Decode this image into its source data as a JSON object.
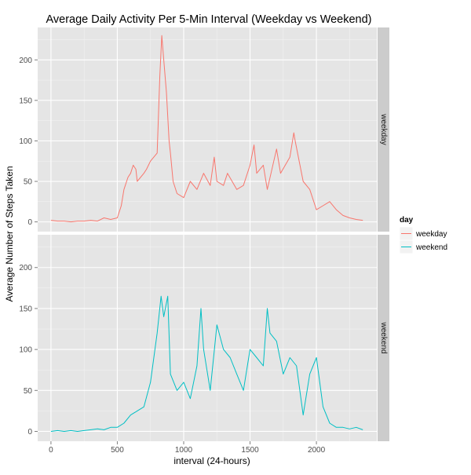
{
  "chart_data": {
    "type": "line",
    "title": "Average Daily Activity Per 5-Min Interval (Weekday vs Weekend)",
    "xlabel": "interval (24-hours)",
    "ylabel": "Average Number of Steps Taken",
    "x_ticks": [
      0,
      500,
      1000,
      1500,
      2000
    ],
    "y_ticks": [
      0,
      50,
      100,
      150,
      200
    ],
    "xlim": [
      -100,
      2455
    ],
    "ylim": [
      -12,
      240
    ],
    "grid": true,
    "legend_position": "right",
    "legend_title": "day",
    "colors": {
      "weekday": "#F8766D",
      "weekend": "#00BFC4",
      "panel_background": "#E5E5E5",
      "grid_line": "#FFFFFF",
      "strip_background": "#CCCCCC"
    },
    "panels": [
      {
        "strip_label": "weekday",
        "series": "weekday"
      },
      {
        "strip_label": "weekend",
        "series": "weekend"
      }
    ],
    "series": [
      {
        "name": "weekday",
        "x": [
          0,
          50,
          100,
          150,
          200,
          250,
          300,
          350,
          400,
          450,
          500,
          530,
          550,
          580,
          600,
          620,
          640,
          650,
          700,
          720,
          750,
          800,
          820,
          835,
          850,
          870,
          890,
          900,
          920,
          950,
          1000,
          1050,
          1100,
          1150,
          1200,
          1230,
          1250,
          1300,
          1330,
          1400,
          1450,
          1500,
          1530,
          1550,
          1600,
          1630,
          1700,
          1730,
          1800,
          1830,
          1840,
          1900,
          1950,
          2000,
          2050,
          2100,
          2150,
          2200,
          2250,
          2300,
          2350
        ],
        "y": [
          2,
          1,
          1,
          0,
          1,
          1,
          2,
          1,
          5,
          3,
          5,
          20,
          40,
          55,
          60,
          70,
          65,
          50,
          60,
          65,
          75,
          85,
          180,
          230,
          200,
          160,
          100,
          85,
          50,
          35,
          30,
          50,
          40,
          60,
          45,
          80,
          50,
          45,
          60,
          40,
          45,
          70,
          95,
          60,
          70,
          40,
          90,
          60,
          80,
          110,
          100,
          50,
          40,
          15,
          20,
          25,
          15,
          8,
          5,
          3,
          2
        ]
      },
      {
        "name": "weekend",
        "x": [
          0,
          50,
          100,
          150,
          200,
          250,
          300,
          350,
          400,
          450,
          500,
          550,
          600,
          650,
          700,
          750,
          800,
          830,
          850,
          880,
          900,
          950,
          1000,
          1050,
          1100,
          1130,
          1150,
          1200,
          1250,
          1300,
          1350,
          1400,
          1450,
          1500,
          1550,
          1600,
          1630,
          1650,
          1700,
          1750,
          1800,
          1850,
          1900,
          1950,
          2000,
          2050,
          2100,
          2150,
          2200,
          2250,
          2300,
          2350
        ],
        "y": [
          0,
          1,
          0,
          1,
          0,
          1,
          2,
          3,
          2,
          5,
          5,
          10,
          20,
          25,
          30,
          60,
          120,
          165,
          140,
          165,
          70,
          50,
          60,
          40,
          80,
          150,
          100,
          50,
          130,
          100,
          90,
          70,
          50,
          100,
          90,
          80,
          150,
          120,
          110,
          70,
          90,
          80,
          20,
          70,
          90,
          30,
          10,
          5,
          5,
          3,
          5,
          2
        ]
      }
    ]
  }
}
